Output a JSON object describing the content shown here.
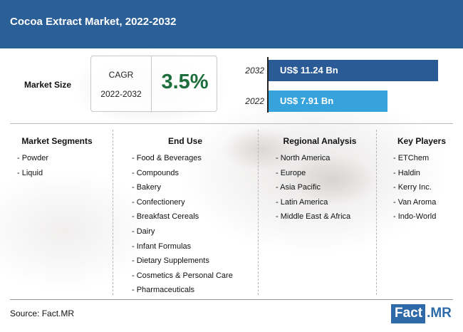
{
  "header": {
    "title": "Cocoa Extract Market, 2022-2032"
  },
  "market_size": {
    "label": "Market Size",
    "cagr_label": "CAGR",
    "cagr_period": "2022-2032",
    "cagr_value": "3.5%"
  },
  "chart_data": {
    "type": "bar",
    "orientation": "horizontal",
    "categories": [
      "2032",
      "2022"
    ],
    "values": [
      11.24,
      7.91
    ],
    "value_labels": [
      "US$ 11.24 Bn",
      "US$ 7.91 Bn"
    ],
    "colors": [
      "#2a5b96",
      "#37a3dc"
    ],
    "xlim": [
      0,
      11.24
    ]
  },
  "columns": [
    {
      "heading": "Market Segments",
      "items": [
        "- Powder",
        "- Liquid"
      ]
    },
    {
      "heading": "End Use",
      "items": [
        "- Food & Beverages",
        "- Compounds",
        "- Bakery",
        "- Confectionery",
        "- Breakfast Cereals",
        "- Dairy",
        "- Infant Formulas",
        "- Dietary Supplements",
        "- Cosmetics & Personal Care",
        "- Pharmaceuticals"
      ]
    },
    {
      "heading": "Regional Analysis",
      "items": [
        "- North America",
        "- Europe",
        "- Asia Pacific",
        "- Latin America",
        "- Middle East & Africa"
      ]
    },
    {
      "heading": "Key Players",
      "items": [
        "- ETChem",
        "- Haldin",
        "- Kerry Inc.",
        "- Van Aroma",
        "- Indo-World"
      ]
    }
  ],
  "footer": {
    "source": "Source: Fact.MR",
    "logo_part1": "Fact",
    "logo_part2": ".MR"
  },
  "colors": {
    "header": "#2b5f97",
    "cagr": "#1d6e3c",
    "brand": "#2f6aa8"
  }
}
